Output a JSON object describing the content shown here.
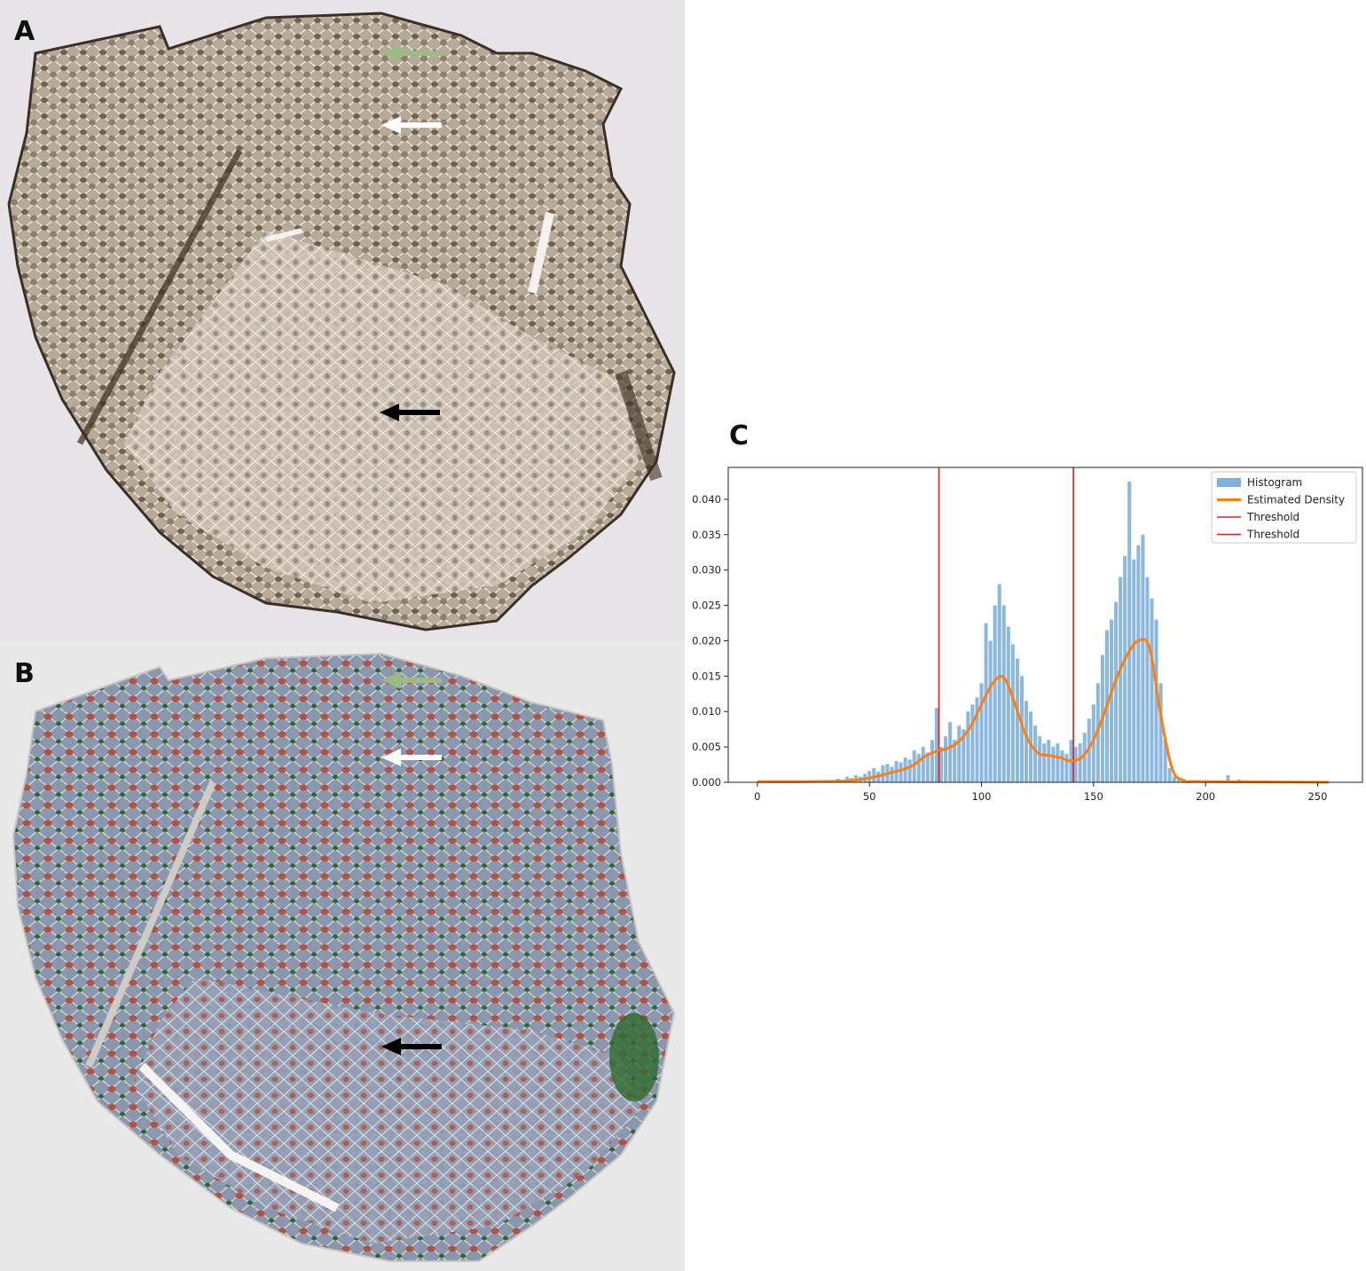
{
  "panels": {
    "a_label": "A",
    "b_label": "B",
    "c_label": "C"
  },
  "colors": {
    "stain_dark": "#5a4a3c",
    "stain_light": "#c9bdae",
    "fiber_blue": "#8a97ad",
    "fiber_red": "#b5523f",
    "fiber_green": "#2e6a2e",
    "arrow_green": "#9cba84",
    "arrow_white": "#ffffff",
    "arrow_black": "#000000"
  },
  "arrows": [
    "green-arrow",
    "white-arrow",
    "black-arrow"
  ],
  "chart_data": {
    "type": "bar",
    "xlim": [
      -13,
      270
    ],
    "ylim": [
      0,
      0.0445
    ],
    "xticks": [
      0,
      50,
      100,
      150,
      200,
      250
    ],
    "yticks": [
      0.0,
      0.005,
      0.01,
      0.015,
      0.02,
      0.025,
      0.03,
      0.035,
      0.04
    ],
    "ytick_labels": [
      "0.000",
      "0.005",
      "0.010",
      "0.015",
      "0.020",
      "0.025",
      "0.030",
      "0.035",
      "0.040"
    ],
    "thresholds": [
      81,
      141
    ],
    "legend": {
      "placement": "top-right",
      "entries": [
        "Histogram",
        "Estimated Density",
        "Threshold",
        "Threshold"
      ]
    },
    "histogram_color": "#7fb0dc",
    "density_color": "#ff7f0e",
    "threshold_color": "#e02020",
    "histogram": {
      "x": [
        36,
        38,
        40,
        42,
        44,
        46,
        48,
        50,
        52,
        54,
        56,
        58,
        60,
        62,
        64,
        66,
        68,
        70,
        72,
        74,
        76,
        78,
        80,
        82,
        84,
        86,
        88,
        90,
        92,
        94,
        96,
        98,
        100,
        102,
        104,
        106,
        108,
        110,
        112,
        114,
        116,
        118,
        120,
        122,
        124,
        126,
        128,
        130,
        132,
        134,
        136,
        138,
        140,
        142,
        144,
        146,
        148,
        150,
        152,
        154,
        156,
        158,
        160,
        162,
        164,
        166,
        168,
        170,
        172,
        174,
        176,
        178,
        180,
        182,
        184,
        186,
        188,
        190,
        200,
        210,
        215,
        218
      ],
      "y": [
        0.0005,
        0.0003,
        0.0008,
        0.0006,
        0.001,
        0.0008,
        0.0012,
        0.0016,
        0.002,
        0.0015,
        0.0024,
        0.0026,
        0.0022,
        0.003,
        0.0028,
        0.0035,
        0.0032,
        0.0045,
        0.004,
        0.005,
        0.0042,
        0.006,
        0.0105,
        0.005,
        0.0065,
        0.0085,
        0.006,
        0.008,
        0.0075,
        0.01,
        0.011,
        0.012,
        0.014,
        0.0225,
        0.02,
        0.025,
        0.028,
        0.025,
        0.022,
        0.0195,
        0.0175,
        0.015,
        0.0115,
        0.01,
        0.008,
        0.0065,
        0.0055,
        0.006,
        0.005,
        0.0055,
        0.0045,
        0.004,
        0.006,
        0.005,
        0.0055,
        0.007,
        0.009,
        0.011,
        0.014,
        0.018,
        0.0215,
        0.023,
        0.0255,
        0.029,
        0.032,
        0.0425,
        0.0315,
        0.0335,
        0.035,
        0.029,
        0.026,
        0.023,
        0.014,
        0.006,
        0.002,
        0.0008,
        0.0004,
        0.0002,
        0.0003,
        0.001,
        0.0004,
        0.0003
      ]
    },
    "density": {
      "x": [
        0,
        20,
        40,
        50,
        60,
        65,
        70,
        75,
        80,
        85,
        90,
        95,
        100,
        105,
        110,
        115,
        120,
        125,
        130,
        135,
        140,
        145,
        150,
        155,
        160,
        165,
        170,
        175,
        180,
        185,
        190,
        200,
        255
      ],
      "y": [
        0.0001,
        0.0001,
        0.0002,
        0.0006,
        0.0014,
        0.0018,
        0.0025,
        0.0037,
        0.0044,
        0.0048,
        0.0058,
        0.0078,
        0.011,
        0.014,
        0.0148,
        0.011,
        0.0065,
        0.0042,
        0.0038,
        0.0035,
        0.003,
        0.0036,
        0.006,
        0.01,
        0.0145,
        0.018,
        0.02,
        0.019,
        0.0095,
        0.002,
        0.0003,
        0.0001,
        0.0
      ]
    }
  }
}
